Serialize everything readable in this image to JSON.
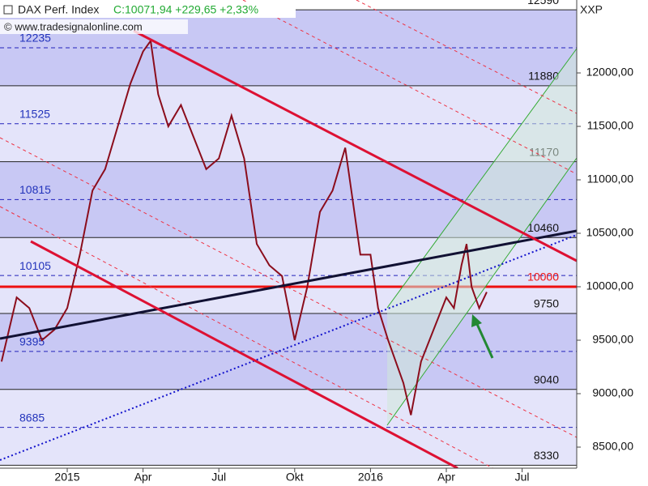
{
  "chart_data": {
    "type": "line",
    "title": "DAX Perf. Index",
    "subtitle": "C:10071,94 +229,65 +2,33%",
    "source": "© www.tradesignalonline.com",
    "symbol": "XXP",
    "color": "#8b0d1c",
    "x": [
      -2.6,
      -2,
      -1.5,
      -1,
      -0.5,
      0,
      0.5,
      1,
      1.5,
      2,
      2.5,
      3,
      3.3,
      3.6,
      4,
      4.5,
      5,
      5.5,
      6,
      6.5,
      7,
      7.5,
      8,
      8.5,
      9,
      9.5,
      10,
      10.5,
      11,
      11.3,
      11.6,
      12,
      12.3,
      12.7,
      13,
      13.3,
      13.6,
      14,
      14.5,
      15,
      15.3,
      15.6,
      15.8,
      16,
      16.3,
      16.6
    ],
    "values": [
      9300,
      9900,
      9800,
      9500,
      9600,
      9800,
      10300,
      10900,
      11100,
      11500,
      11900,
      12200,
      12300,
      11800,
      11500,
      11700,
      11400,
      11100,
      11200,
      11600,
      11200,
      10400,
      10200,
      10100,
      9500,
      10000,
      10700,
      10900,
      11300,
      10800,
      10300,
      10300,
      9800,
      9500,
      9300,
      9100,
      8800,
      9300,
      9600,
      9900,
      9800,
      10200,
      10400,
      10000,
      9800,
      9950
    ],
    "xlim": [
      -2.66,
      20.16
    ],
    "xticks": [
      {
        "value": 0,
        "label": "2015"
      },
      {
        "value": 3,
        "label": "Apr"
      },
      {
        "value": 6,
        "label": "Jul"
      },
      {
        "value": 9,
        "label": "Okt"
      },
      {
        "value": 12,
        "label": "2016"
      },
      {
        "value": 15,
        "label": "Apr"
      },
      {
        "value": 18,
        "label": "Jul"
      }
    ],
    "ylim": [
      8303,
      12682
    ],
    "yticks": [
      {
        "value": 8500,
        "label": "8500,00"
      },
      {
        "value": 9000,
        "label": "9000,00"
      },
      {
        "value": 9500,
        "label": "9500,00"
      },
      {
        "value": 10000,
        "label": "10000,00"
      },
      {
        "value": 10500,
        "label": "10500,00"
      },
      {
        "value": 11000,
        "label": "11000,00"
      },
      {
        "value": 11500,
        "label": "11500,00"
      },
      {
        "value": 12000,
        "label": "12000,00"
      }
    ],
    "solid_levels": [
      12590,
      11880,
      11170,
      10460,
      9750,
      9040,
      8330
    ],
    "dashed_levels": [
      12235,
      11525,
      10815,
      10105,
      9395,
      8685
    ],
    "highlight_level": 10000,
    "highlight_color": "#ee1111"
  }
}
